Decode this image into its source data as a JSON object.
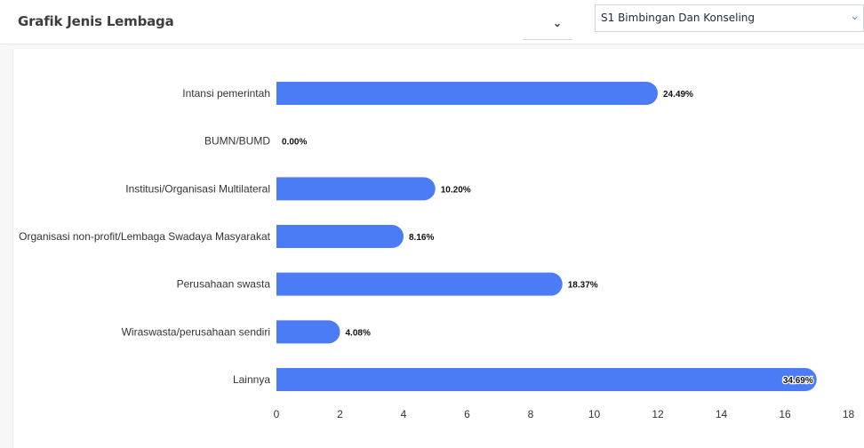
{
  "header": {
    "title": "Grafik Jenis Lembaga",
    "filter_program": "S1 Bimbingan Dan Konseling"
  },
  "chart_data": {
    "type": "bar",
    "orientation": "horizontal",
    "categories": [
      "Intansi pemerintah",
      "BUMN/BUMD",
      "Institusi/Organisasi Multilateral",
      "Organisasi non-profit/Lembaga Swadaya Masyarakat",
      "Perusahaan swasta",
      "Wiraswasta/perusahaan sendiri",
      "Lainnya"
    ],
    "values": [
      12,
      0,
      5,
      4,
      9,
      2,
      17
    ],
    "data_labels": [
      "24.49%",
      "0.00%",
      "10.20%",
      "8.16%",
      "18.37%",
      "4.08%",
      "34.69%"
    ],
    "x_ticks": [
      "0",
      "2",
      "4",
      "6",
      "8",
      "10",
      "12",
      "14",
      "16",
      "18"
    ],
    "xlim": [
      0,
      18
    ],
    "bar_color": "#4b7bf5",
    "grid": false,
    "legend": "none"
  }
}
